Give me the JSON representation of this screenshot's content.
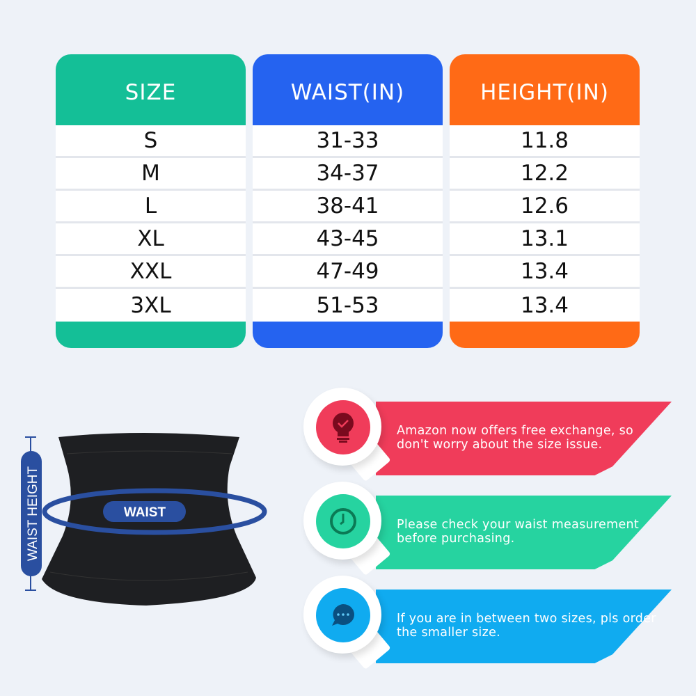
{
  "table": {
    "columns": [
      {
        "header": "SIZE",
        "color": "#14bf97",
        "values": [
          "S",
          "M",
          "L",
          "XL",
          "XXL",
          "3XL"
        ]
      },
      {
        "header": "WAIST(IN)",
        "color": "#2563f0",
        "values": [
          "31-33",
          "34-37",
          "38-41",
          "43-45",
          "47-49",
          "51-53"
        ]
      },
      {
        "header": "HEIGHT(IN)",
        "color": "#ff6a16",
        "values": [
          "11.8",
          "12.2",
          "12.6",
          "13.1",
          "13.4",
          "13.4"
        ]
      }
    ]
  },
  "figure": {
    "waist_label": "WAIST",
    "height_label": "WAIST HEIGHT",
    "accent": "#2a4fa0"
  },
  "tips": [
    {
      "icon": "lightbulb-check-icon",
      "color": "#f03c5a",
      "icon_color": "#7a0a1e",
      "text": "Amazon now offers free exchange, so don't worry about the size issue."
    },
    {
      "icon": "clock-icon",
      "color": "#26d3a0",
      "icon_color": "#0b7a55",
      "text": "Please check your waist measurement before purchasing."
    },
    {
      "icon": "chat-bubble-icon",
      "color": "#10abf0",
      "icon_color": "#0a4f80",
      "text": "If you are in between two sizes, pls order the smaller size."
    }
  ]
}
